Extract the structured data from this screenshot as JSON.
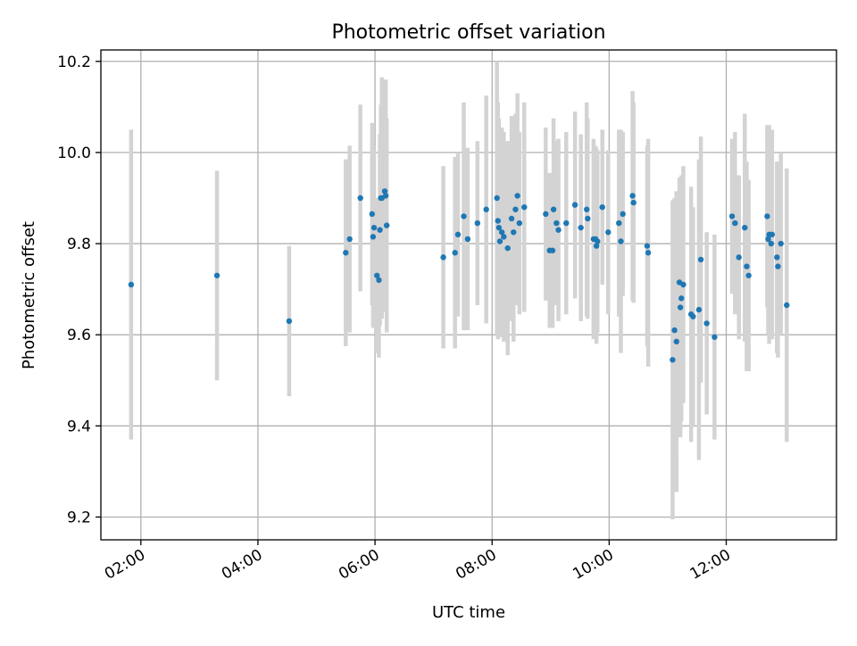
{
  "chart_data": {
    "type": "scatter",
    "title": "Photometric offset variation",
    "xlabel": "UTC time",
    "ylabel": "Photometric offset",
    "x_format": "HH:MM",
    "xlim": [
      "01:19",
      "13:53"
    ],
    "ylim": [
      9.15,
      10.225
    ],
    "x_ticks": [
      "02:00",
      "04:00",
      "06:00",
      "08:00",
      "10:00",
      "12:00"
    ],
    "y_ticks": [
      9.2,
      9.4,
      9.6,
      9.8,
      10.0,
      10.2
    ],
    "y_tick_labels": [
      "9.2",
      "9.4",
      "9.6",
      "9.8",
      "10.0",
      "10.2"
    ],
    "grid": true,
    "legend": "none",
    "colors": {
      "point": "#1f77b4",
      "errorbar": "#d3d3d3",
      "grid": "#b0b0b0",
      "axes": "#000000"
    },
    "series": [
      {
        "x": [
          "01:50",
          "03:18",
          "04:32",
          "05:30",
          "05:34",
          "05:45",
          "05:57",
          "05:58",
          "05:59",
          "06:02",
          "06:04",
          "06:05",
          "06:06",
          "06:07",
          "06:10",
          "06:11",
          "06:12",
          "07:10",
          "07:22",
          "07:25",
          "07:31",
          "07:35",
          "07:45",
          "07:54",
          "08:05",
          "08:06",
          "08:07",
          "08:08",
          "08:10",
          "08:12",
          "08:16",
          "08:20",
          "08:22",
          "08:24",
          "08:26",
          "08:28",
          "08:33",
          "08:55",
          "08:59",
          "09:02",
          "09:03",
          "09:06",
          "09:08",
          "09:16",
          "09:25",
          "09:31",
          "09:37",
          "09:38",
          "09:44",
          "09:46",
          "09:47",
          "09:48",
          "09:53",
          "09:59",
          "10:10",
          "10:12",
          "10:14",
          "10:24",
          "10:25",
          "10:39",
          "10:40",
          "11:05",
          "11:07",
          "11:09",
          "11:12",
          "11:13",
          "11:14",
          "11:16",
          "11:24",
          "11:26",
          "11:32",
          "11:34",
          "11:40",
          "11:48",
          "12:06",
          "12:09",
          "12:13",
          "12:19",
          "12:21",
          "12:23",
          "12:42",
          "12:43",
          "12:44",
          "12:46",
          "12:47",
          "12:52",
          "12:53",
          "12:56",
          "13:02"
        ],
        "y": [
          9.71,
          9.73,
          9.63,
          9.78,
          9.81,
          9.9,
          9.865,
          9.815,
          9.835,
          9.73,
          9.72,
          9.83,
          9.9,
          9.9,
          9.915,
          9.905,
          9.84,
          9.77,
          9.78,
          9.82,
          9.86,
          9.81,
          9.845,
          9.875,
          9.9,
          9.85,
          9.835,
          9.805,
          9.825,
          9.815,
          9.79,
          9.855,
          9.825,
          9.875,
          9.905,
          9.845,
          9.88,
          9.865,
          9.785,
          9.785,
          9.875,
          9.845,
          9.83,
          9.845,
          9.885,
          9.835,
          9.875,
          9.855,
          9.81,
          9.81,
          9.795,
          9.805,
          9.88,
          9.825,
          9.845,
          9.805,
          9.865,
          9.905,
          9.89,
          9.795,
          9.78,
          9.545,
          9.61,
          9.585,
          9.715,
          9.66,
          9.68,
          9.71,
          9.645,
          9.64,
          9.655,
          9.765,
          9.625,
          9.595,
          9.86,
          9.845,
          9.77,
          9.835,
          9.75,
          9.73,
          9.86,
          9.81,
          9.82,
          9.8,
          9.82,
          9.77,
          9.75,
          9.8,
          9.665
        ],
        "yerr": [
          0.34,
          0.23,
          0.165,
          0.205,
          0.205,
          0.205,
          0.2,
          0.2,
          0.17,
          0.17,
          0.17,
          0.21,
          0.205,
          0.265,
          0.245,
          0.255,
          0.235,
          0.2,
          0.21,
          0.18,
          0.25,
          0.2,
          0.18,
          0.25,
          0.3,
          0.26,
          0.24,
          0.2,
          0.23,
          0.23,
          0.235,
          0.225,
          0.24,
          0.21,
          0.225,
          0.2,
          0.23,
          0.19,
          0.17,
          0.17,
          0.2,
          0.18,
          0.2,
          0.2,
          0.205,
          0.205,
          0.235,
          0.22,
          0.22,
          0.205,
          0.215,
          0.2,
          0.17,
          0.18,
          0.205,
          0.245,
          0.18,
          0.23,
          0.22,
          0.22,
          0.25,
          0.35,
          0.29,
          0.33,
          0.23,
          0.285,
          0.27,
          0.26,
          0.28,
          0.24,
          0.33,
          0.27,
          0.2,
          0.225,
          0.17,
          0.2,
          0.18,
          0.25,
          0.23,
          0.21,
          0.2,
          0.21,
          0.24,
          0.2,
          0.23,
          0.21,
          0.2,
          0.2,
          0.3
        ]
      }
    ]
  }
}
